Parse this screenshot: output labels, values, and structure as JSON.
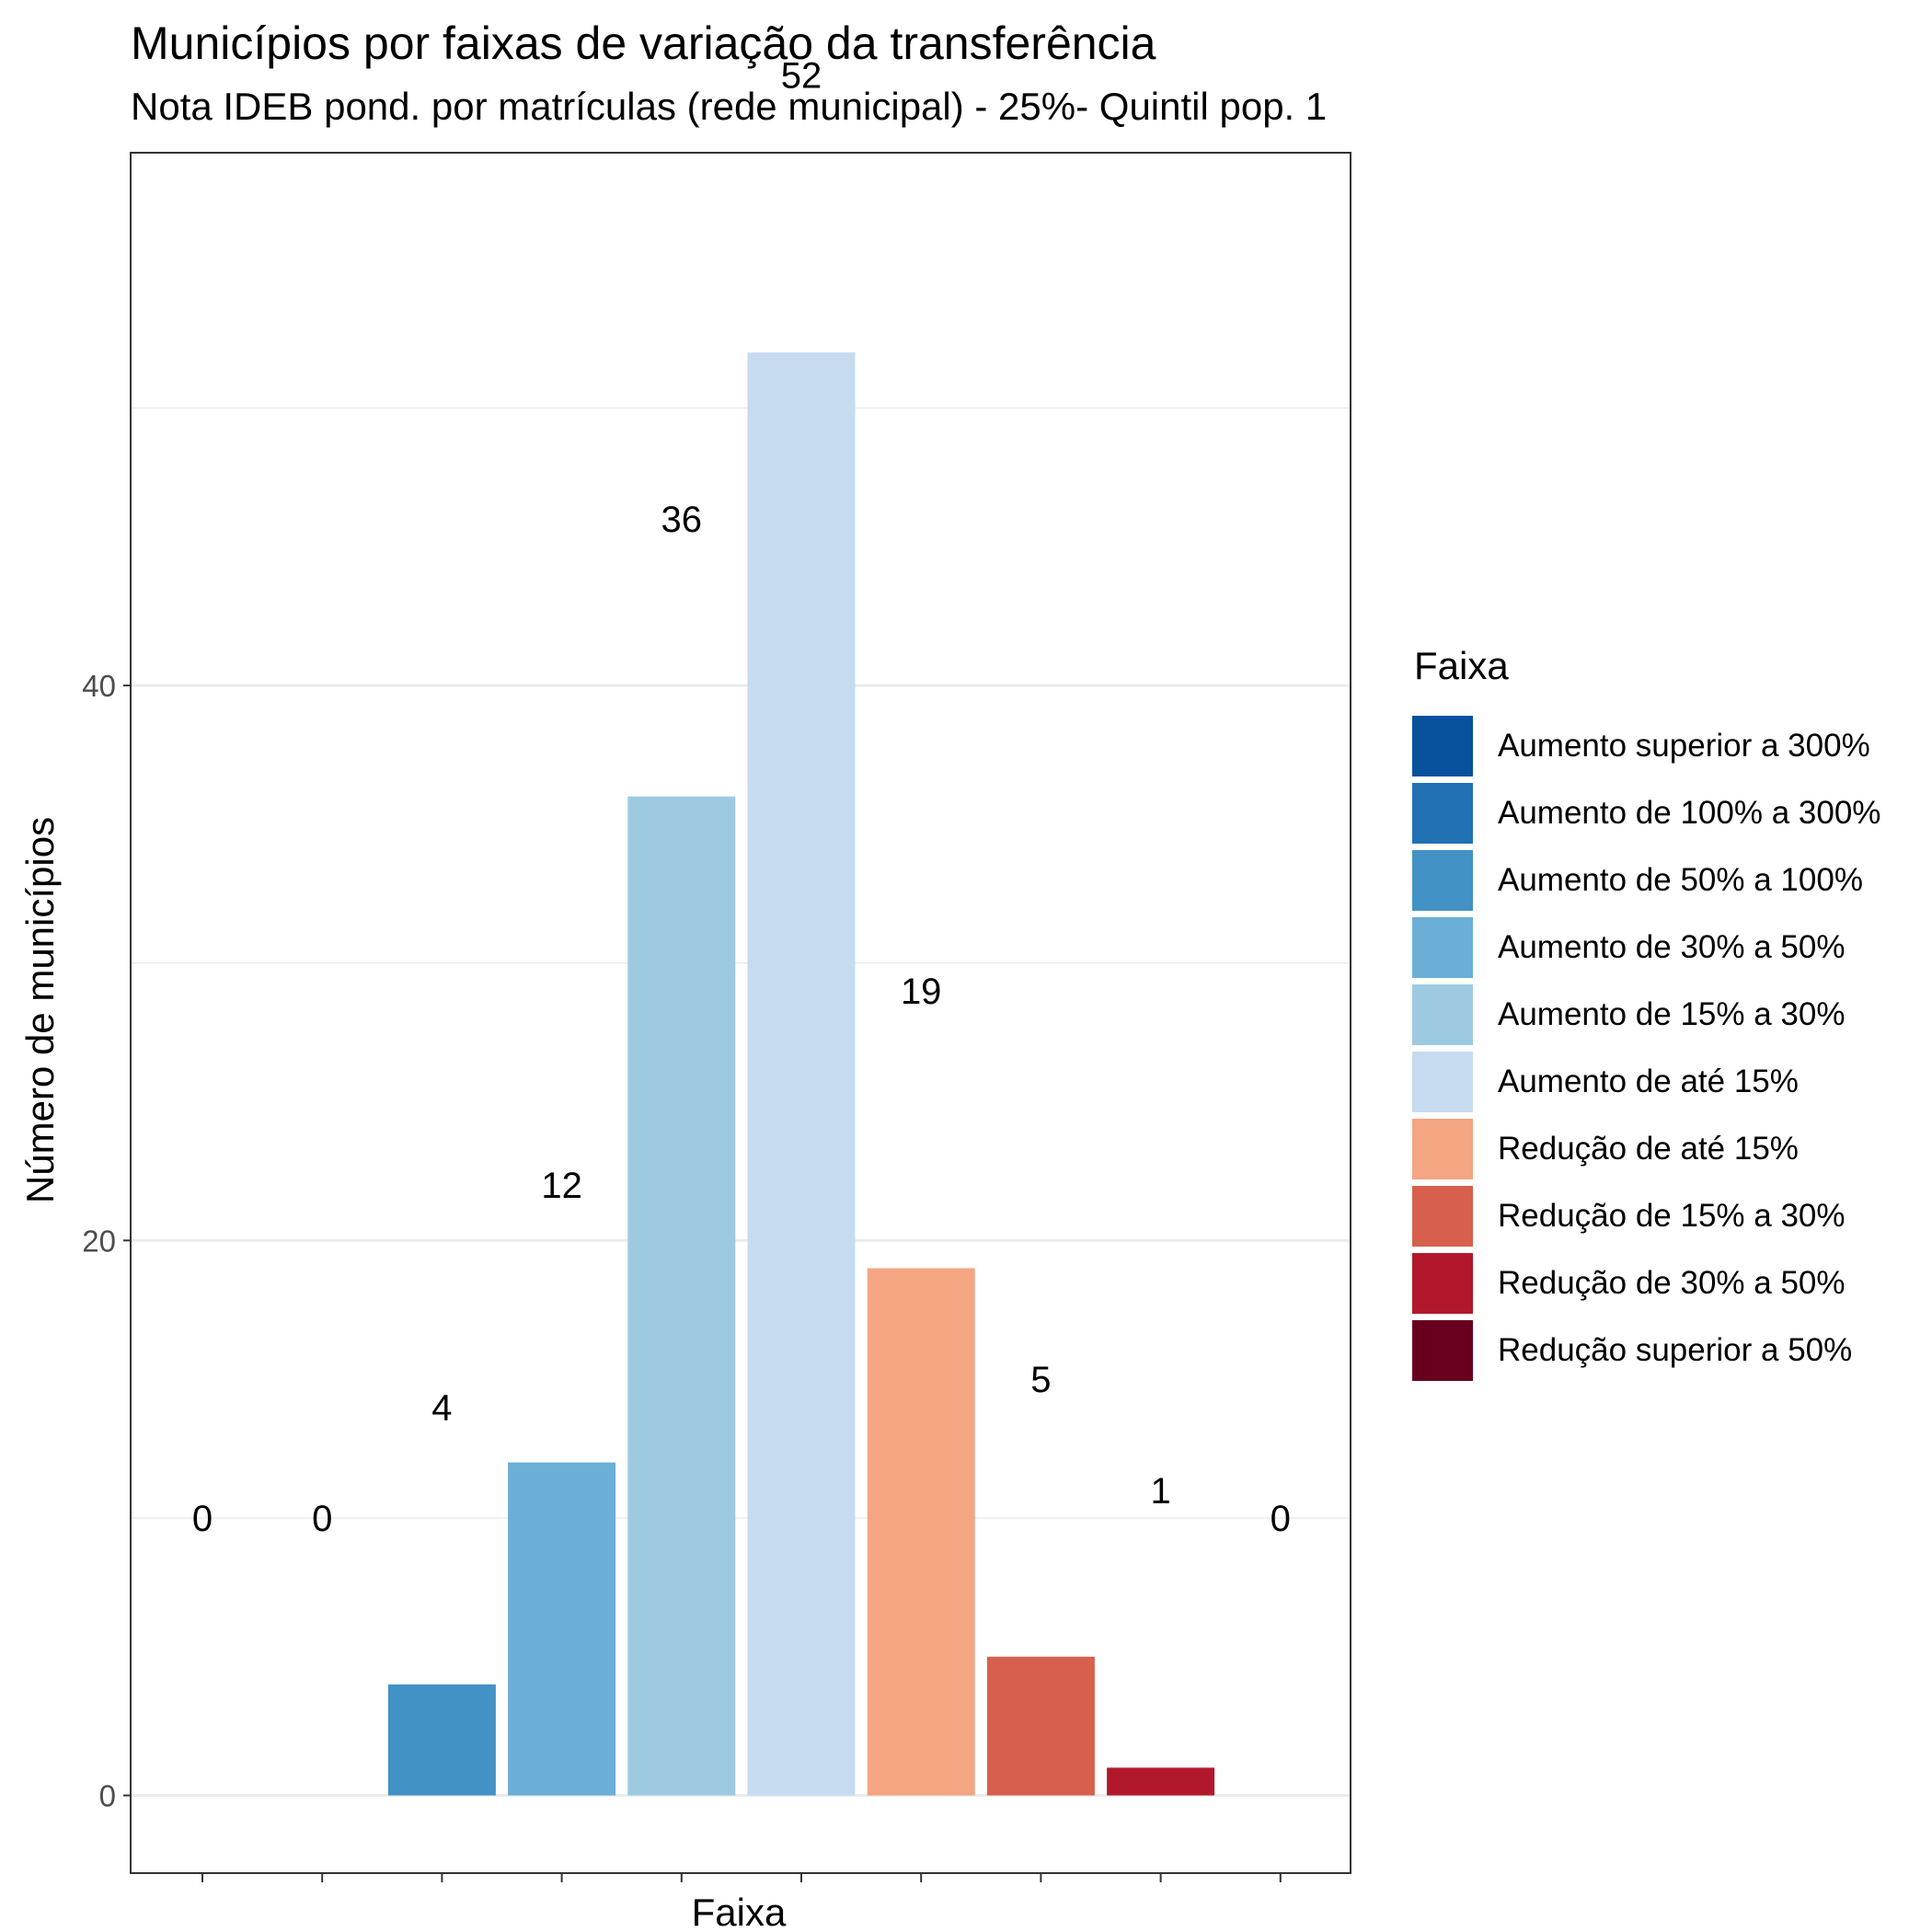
{
  "chart_data": {
    "type": "bar",
    "title": "Municípios por faixas de variação da transferência",
    "subtitle": "Nota IDEB pond. por matrículas (rede municipal) - 25%- Quintil pop. 1",
    "xlabel": "Faixa",
    "ylabel": "Número de municípios",
    "ylim": [
      -2.8,
      59.2
    ],
    "yticks": [
      0,
      20,
      40
    ],
    "grid": true,
    "legend_title": "Faixa",
    "legend_position": "right",
    "categories": [
      "Aumento superior a 300%",
      "Aumento de 100% a 300%",
      "Aumento de 50% a 100%",
      "Aumento de 30% a 50%",
      "Aumento de 15% a 30%",
      "Aumento de até 15%",
      "Redução de até 15%",
      "Redução de 15% a 30%",
      "Redução de 30% a 50%",
      "Redução superior a 50%"
    ],
    "values": [
      0,
      0,
      4,
      12,
      36,
      52,
      19,
      5,
      1,
      0
    ],
    "colors": [
      "#08519c",
      "#2171b5",
      "#4292c6",
      "#6baed6",
      "#9ecae1",
      "#c6dbef",
      "#f4a582",
      "#d6604d",
      "#b2182b",
      "#67001f"
    ]
  }
}
